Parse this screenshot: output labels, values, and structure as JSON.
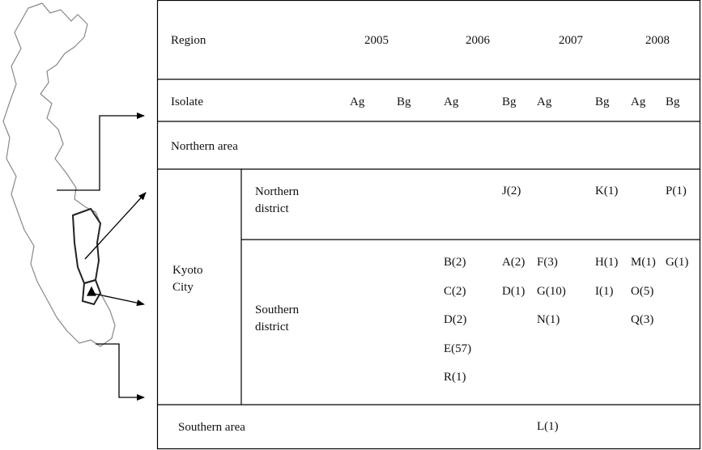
{
  "table": {
    "header": {
      "label": "Region",
      "years": [
        "2005",
        "2006",
        "2007",
        "2008"
      ]
    },
    "isolate_row": {
      "label": "Isolate",
      "isolates": [
        "Ag",
        "Bg",
        "Ag",
        "Bg",
        "Ag",
        "Bg",
        "Ag",
        "Bg"
      ]
    },
    "northern_area": {
      "label": "Northern area"
    },
    "kyoto_city": {
      "label": "Kyoto City",
      "districts": [
        {
          "label": "Northern district",
          "cells": [
            [],
            [],
            [],
            [
              "J(2)"
            ],
            [],
            [
              "K(1)"
            ],
            [],
            [
              "P(1)"
            ]
          ]
        },
        {
          "label": "Southern district",
          "cells": [
            [],
            [],
            [
              "B(2)",
              "C(2)",
              "D(2)",
              "E(57)",
              "R(1)"
            ],
            [
              "A(2)",
              "D(1)"
            ],
            [
              "F(3)",
              "G(10)",
              "N(1)"
            ],
            [
              "H(1)",
              "I(1)"
            ],
            [
              "M(1)",
              "O(5)",
              "Q(3)"
            ],
            [
              "G(1)"
            ]
          ]
        }
      ]
    },
    "southern_area": {
      "label": "Southern area",
      "cells": [
        [],
        [],
        [],
        [],
        [
          "L(1)"
        ],
        [],
        [],
        []
      ]
    }
  }
}
